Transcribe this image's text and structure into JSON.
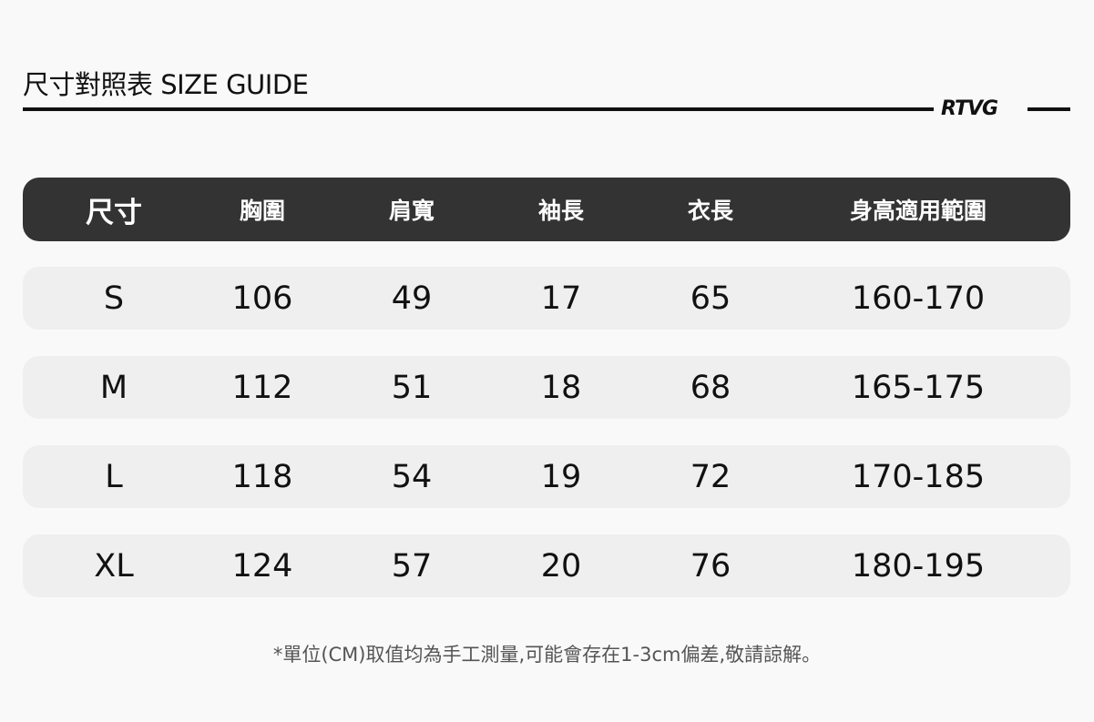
{
  "title": "尺寸對照表 SIZE GUIDE",
  "brand": "RTVG",
  "table": {
    "headers": [
      "尺寸",
      "胸圍",
      "肩寬",
      "袖長",
      "衣長",
      "身高適用範圍"
    ],
    "rows": [
      [
        "S",
        "106",
        "49",
        "17",
        "65",
        "160-170"
      ],
      [
        "M",
        "112",
        "51",
        "18",
        "68",
        "165-175"
      ],
      [
        "L",
        "118",
        "54",
        "19",
        "72",
        "170-185"
      ],
      [
        "XL",
        "124",
        "57",
        "20",
        "76",
        "180-195"
      ]
    ]
  },
  "note": "*單位(CM)取值均為手工測量,可能會存在1-3cm偏差,敬請諒解。",
  "colors": {
    "header_bg": "#333333",
    "row_bg": "#efefef",
    "background": "#f9f9f9"
  }
}
